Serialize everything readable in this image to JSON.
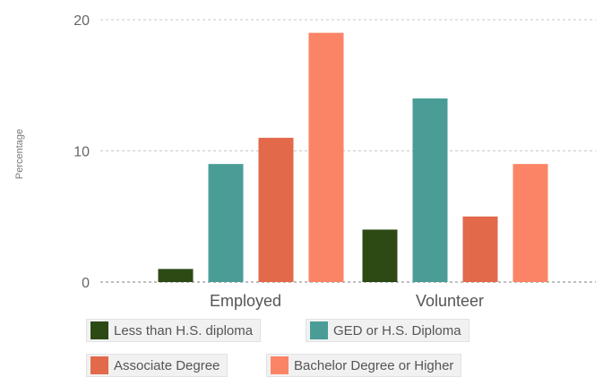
{
  "chart_data": {
    "type": "bar",
    "categories": [
      "Employed",
      "Volunteer"
    ],
    "series": [
      {
        "name": "Less than H.S. diploma",
        "values": [
          1,
          4
        ],
        "color": "#2d4a14"
      },
      {
        "name": "GED or H.S. Diploma",
        "values": [
          9,
          14
        ],
        "color": "#4a9d96"
      },
      {
        "name": "Associate Degree",
        "values": [
          11,
          5
        ],
        "color": "#e2694a"
      },
      {
        "name": "Bachelor Degree or Higher",
        "values": [
          19,
          9
        ],
        "color": "#fb8466"
      }
    ],
    "ylabel": "Percentage",
    "ylim": [
      0,
      20
    ],
    "yticks": [
      0,
      10,
      20
    ],
    "grid": true,
    "legend_position": "bottom"
  }
}
